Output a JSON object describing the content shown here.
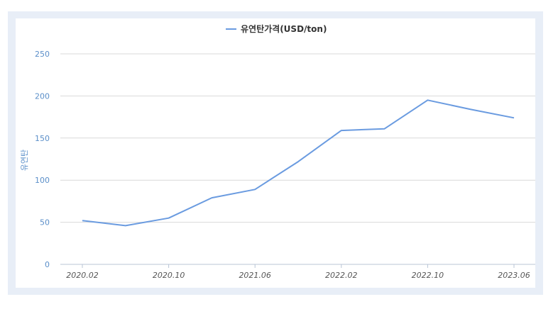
{
  "chart_data": {
    "type": "line",
    "title": "",
    "xlabel": "",
    "ylabel": "유연탄",
    "ylim": [
      0,
      250
    ],
    "yticks": [
      0,
      50,
      100,
      150,
      200,
      250
    ],
    "x": [
      "2020.02",
      "2020.06",
      "2020.10",
      "2021.02",
      "2021.06",
      "2021.10",
      "2022.02",
      "2022.06",
      "2022.10",
      "2023.02",
      "2023.06"
    ],
    "xtick_labels": [
      "2020.02",
      "2020.10",
      "2021.06",
      "2022.02",
      "2022.10",
      "2023.06"
    ],
    "series": [
      {
        "name": "유연탄가격(USD/ton)",
        "values": [
          52,
          46,
          55,
          79,
          89,
          122,
          159,
          161,
          195,
          184,
          174
        ],
        "color": "#6a9be0"
      }
    ],
    "legend": "top-center",
    "grid": true
  }
}
